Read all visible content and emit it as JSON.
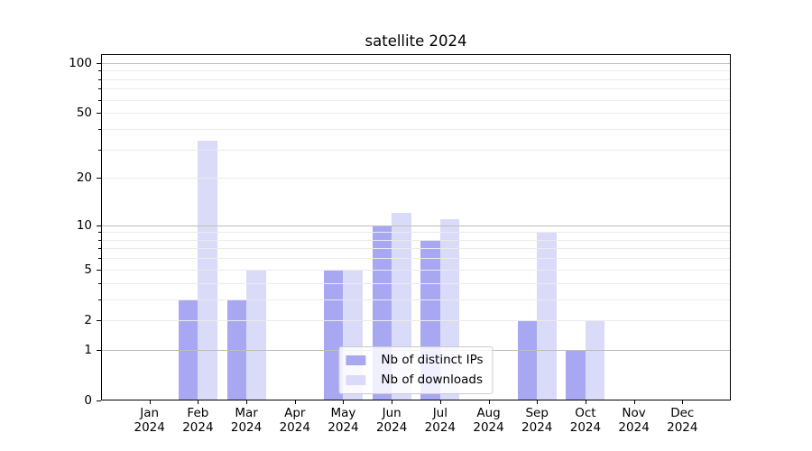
{
  "title": "satellite 2024",
  "colors": {
    "bar_ips": "#a8a8f2",
    "bar_downloads": "#dadaf9",
    "grid_major": "#bdbdbd",
    "grid_minor": "#ebebeb",
    "axis": "#000000",
    "legend_border": "#cccccc"
  },
  "chart_data": {
    "type": "bar",
    "title": "satellite 2024",
    "categories": [
      {
        "month": "Jan",
        "year": "2024"
      },
      {
        "month": "Feb",
        "year": "2024"
      },
      {
        "month": "Mar",
        "year": "2024"
      },
      {
        "month": "Apr",
        "year": "2024"
      },
      {
        "month": "May",
        "year": "2024"
      },
      {
        "month": "Jun",
        "year": "2024"
      },
      {
        "month": "Jul",
        "year": "2024"
      },
      {
        "month": "Aug",
        "year": "2024"
      },
      {
        "month": "Sep",
        "year": "2024"
      },
      {
        "month": "Oct",
        "year": "2024"
      },
      {
        "month": "Nov",
        "year": "2024"
      },
      {
        "month": "Dec",
        "year": "2024"
      }
    ],
    "series": [
      {
        "name": "Nb of distinct IPs",
        "color_key": "bar_ips",
        "values": [
          0,
          3,
          3,
          0,
          5,
          10,
          8,
          0,
          2,
          1,
          0,
          0
        ]
      },
      {
        "name": "Nb of downloads",
        "color_key": "bar_downloads",
        "values": [
          0,
          34,
          5,
          0,
          5,
          12,
          11,
          0,
          9,
          2,
          0,
          0
        ]
      }
    ],
    "xlabel": "",
    "ylabel": "",
    "yscale": "log1p",
    "ylim": [
      0,
      113
    ],
    "yticks": [
      0,
      1,
      2,
      5,
      10,
      20,
      50,
      100
    ],
    "yticks_minor": [
      2,
      3,
      4,
      5,
      6,
      7,
      8,
      9,
      20,
      30,
      40,
      50,
      60,
      70,
      80,
      90
    ],
    "grid_major_at": [
      1,
      10,
      100
    ],
    "grid": true,
    "legend_position": "lower center"
  }
}
